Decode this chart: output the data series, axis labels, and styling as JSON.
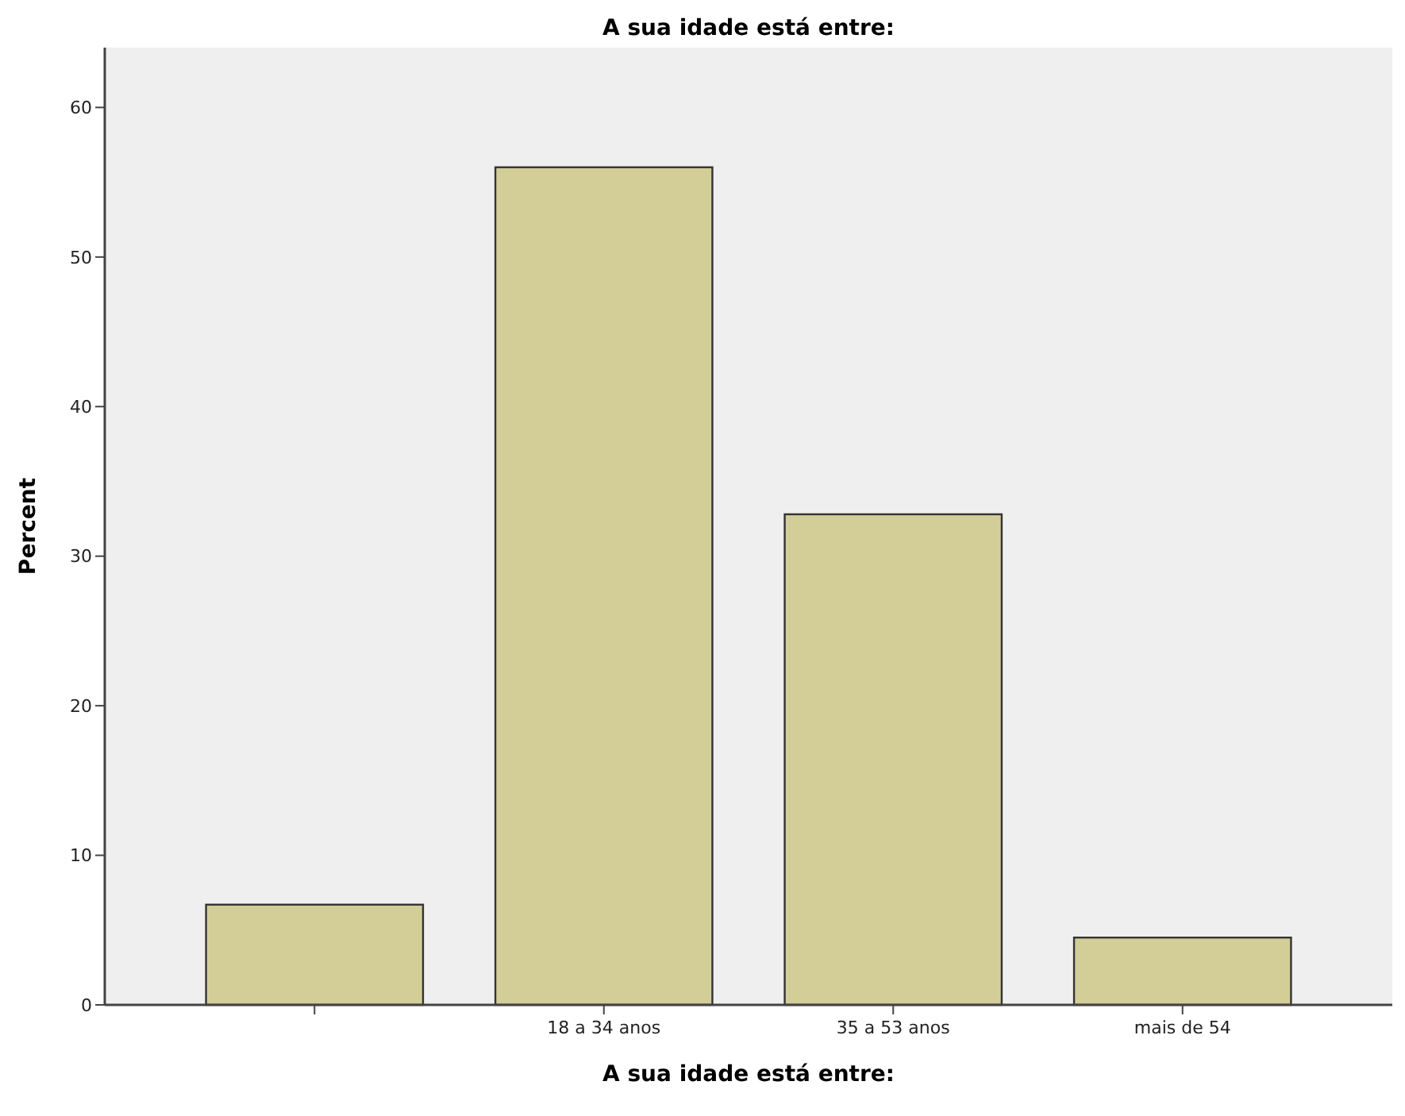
{
  "chart_data": {
    "type": "bar",
    "title": "A sua idade está entre:",
    "xlabel": "A sua idade está entre:",
    "ylabel": "Percent",
    "categories": [
      null,
      "18 a 34 anos",
      "35 a 53 anos",
      "mais de 54"
    ],
    "values": [
      6.7,
      56.0,
      32.8,
      4.5
    ],
    "color": "#d3ce98",
    "ylim": [
      0,
      64
    ],
    "yticks": [
      0,
      10,
      20,
      30,
      40,
      50,
      60
    ],
    "grid": false
  }
}
